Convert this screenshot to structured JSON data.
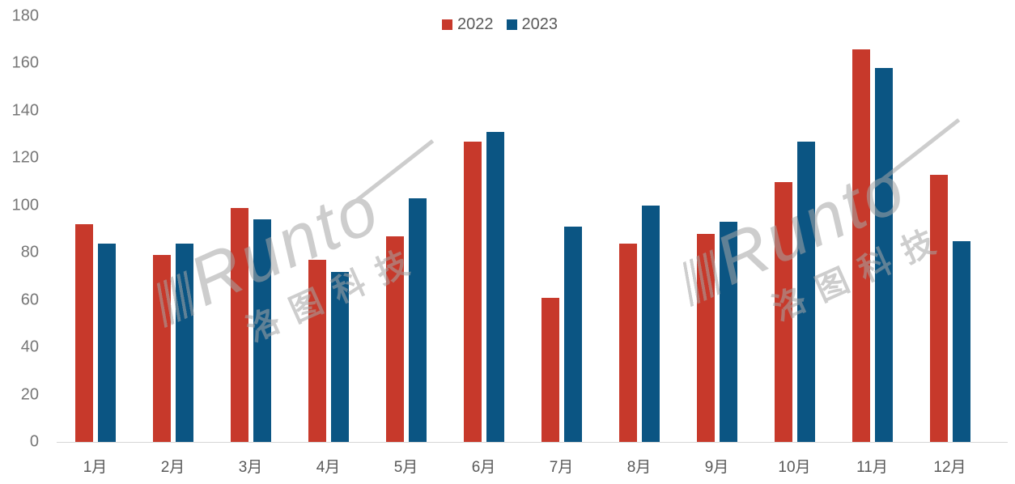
{
  "chart_data": {
    "type": "bar",
    "title": "",
    "categories": [
      "1月",
      "2月",
      "3月",
      "4月",
      "5月",
      "6月",
      "7月",
      "8月",
      "9月",
      "10月",
      "11月",
      "12月"
    ],
    "series": [
      {
        "name": "2022",
        "color": "#C7392B",
        "values": [
          92,
          79,
          99,
          77,
          87,
          127,
          61,
          84,
          88,
          110,
          166,
          113
        ]
      },
      {
        "name": "2023",
        "color": "#0B5583",
        "values": [
          84,
          84,
          94,
          72,
          103,
          131,
          91,
          100,
          93,
          127,
          158,
          85
        ]
      }
    ],
    "xlabel": "",
    "ylabel": "",
    "ylim": [
      0,
      180
    ],
    "yticks": [
      0,
      20,
      40,
      60,
      80,
      100,
      120,
      140,
      160,
      180
    ],
    "grid": false,
    "legend_position": "top-center"
  },
  "watermark": {
    "brand": "Runto",
    "cn": "洛图科技"
  },
  "colors": {
    "series_2022": "#C7392B",
    "series_2023": "#0B5583",
    "axis_line": "#D6D6D6",
    "tick_text": "#767676",
    "month_text": "#595959",
    "watermark": "#A6A6A6",
    "background": "#FFFFFF"
  }
}
